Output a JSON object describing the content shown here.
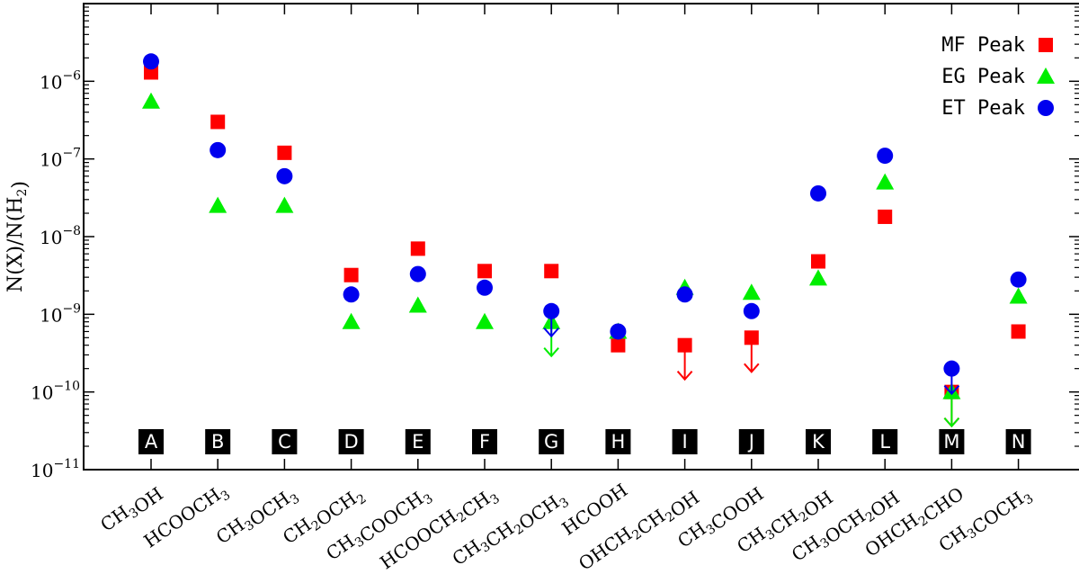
{
  "chart_data": {
    "type": "scatter",
    "ylabel": "N(X)/N(H2)",
    "y_scale": "log",
    "ylim": [
      1e-11,
      1e-05
    ],
    "y_tick_labels": [
      "10^-11",
      "10^-10",
      "10^-9",
      "10^-8",
      "10^-7",
      "10^-6"
    ],
    "categories": [
      "CH3OH",
      "HCOOCH3",
      "CH3OCH3",
      "CH2OCH2",
      "CH3COOCH3",
      "HCOOCH2CH3",
      "CH3CH2OCH3",
      "HCOOH",
      "OHCH2CH2OH",
      "CH3COOH",
      "CH3CH2OH",
      "CH3OCH2OH",
      "OHCH2CHO",
      "CH3COCH3"
    ],
    "letters": [
      "A",
      "B",
      "C",
      "D",
      "E",
      "F",
      "G",
      "H",
      "I",
      "J",
      "K",
      "L",
      "M",
      "N"
    ],
    "legend_position": "top-right",
    "series": [
      {
        "name": "MF Peak",
        "marker": "square",
        "color": "#ff0000",
        "values": [
          1.3e-06,
          3e-07,
          1.2e-07,
          3.2e-09,
          7e-09,
          3.6e-09,
          3.6e-09,
          4e-10,
          4e-10,
          5e-10,
          4.8e-09,
          1.8e-08,
          1e-10,
          6e-10
        ],
        "upper_limits": [
          false,
          false,
          false,
          false,
          false,
          false,
          false,
          false,
          true,
          true,
          false,
          false,
          true,
          false
        ]
      },
      {
        "name": "EG Peak",
        "marker": "triangle",
        "color": "#00ee00",
        "values": [
          5.5e-07,
          2.5e-08,
          2.5e-08,
          8e-10,
          1.3e-09,
          8e-10,
          8e-10,
          6e-10,
          2.2e-09,
          1.9e-09,
          2.9e-09,
          5e-08,
          1e-10,
          1.7e-09
        ],
        "upper_limits": [
          false,
          false,
          false,
          false,
          false,
          false,
          true,
          false,
          false,
          false,
          false,
          false,
          true,
          false
        ]
      },
      {
        "name": "ET Peak",
        "marker": "circle",
        "color": "#0000ee",
        "values": [
          1.8e-06,
          1.3e-07,
          6e-08,
          1.8e-09,
          3.3e-09,
          2.2e-09,
          1.1e-09,
          6e-10,
          1.8e-09,
          1.1e-09,
          3.6e-08,
          1.1e-07,
          2e-10,
          2.8e-09
        ],
        "upper_limits": [
          false,
          false,
          false,
          false,
          false,
          false,
          true,
          false,
          false,
          false,
          false,
          false,
          true,
          false
        ]
      }
    ]
  }
}
